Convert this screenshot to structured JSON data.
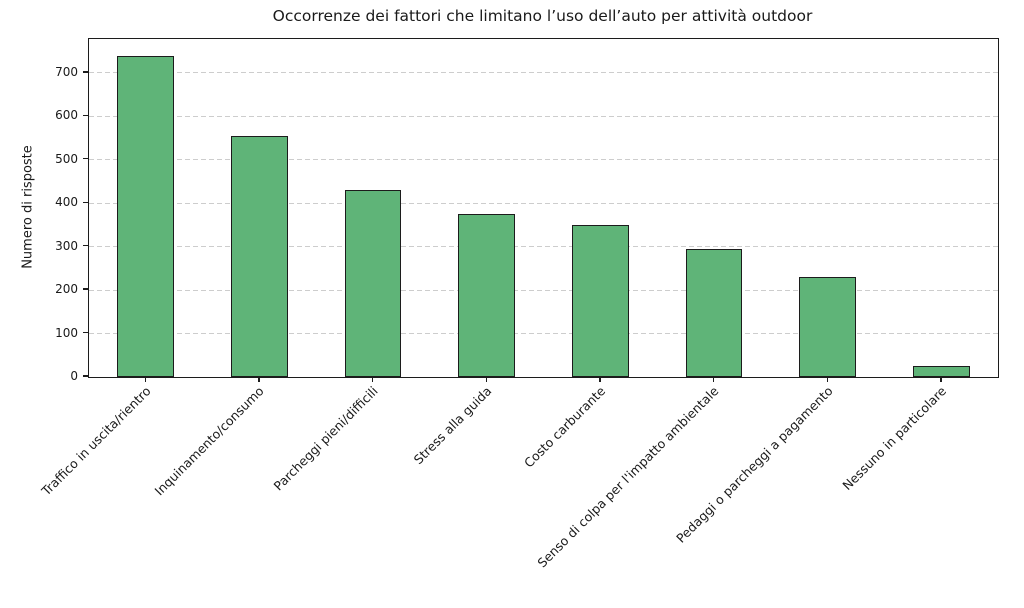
{
  "chart_data": {
    "type": "bar",
    "title": "Occorrenze dei fattori che limitano l’uso dell’auto per attività outdoor",
    "ylabel": "Numero di risposte",
    "xlabel": "",
    "categories": [
      "Traffico in uscita/rientro",
      "Inquinamento/consumo",
      "Parcheggi pieni/difficili",
      "Stress alla guida",
      "Costo carburante",
      "Senso di colpa per l'impatto ambientale",
      "Pedaggi o parcheggi a pagamento",
      "Nessuno in particolare"
    ],
    "values": [
      740,
      555,
      430,
      375,
      350,
      295,
      230,
      25
    ],
    "yticks": [
      0,
      100,
      200,
      300,
      400,
      500,
      600,
      700
    ],
    "ylim": [
      0,
      778
    ],
    "bar_color": "#5fb478",
    "bar_edge_color": "#1c1c1c",
    "grid": "dashed-horizontal",
    "grid_color": "#cdcdcd",
    "legend": "none",
    "x_tick_rotation_deg": 45
  }
}
